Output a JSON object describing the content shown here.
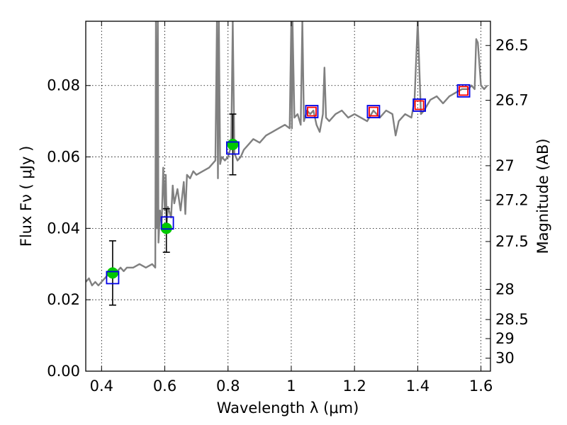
{
  "chart_data": {
    "type": "line",
    "title": "",
    "xlabel": "Wavelength  λ (μm)",
    "ylabel": "Flux  Fν  ( μJy )",
    "y2label": "Magnitude (AB)",
    "xlim": [
      0.35,
      1.63
    ],
    "ylim": [
      0.0,
      0.098
    ],
    "grid": true,
    "x_ticks": [
      0.4,
      0.6,
      0.8,
      1.0,
      1.2,
      1.4,
      1.6
    ],
    "x_tick_labels": [
      "0.4",
      "0.6",
      "0.8",
      "1",
      "1.2",
      "1.4",
      "1.6"
    ],
    "y_ticks": [
      0.0,
      0.02,
      0.04,
      0.06,
      0.08
    ],
    "y_tick_labels": [
      "0.00",
      "0.02",
      "0.04",
      "0.06",
      "0.08"
    ],
    "y2_ticks": [
      26.5,
      26.7,
      27.0,
      27.2,
      27.5,
      28.0,
      28.5,
      29.0,
      30.0
    ],
    "y2_tick_labels": [
      "26.5",
      "26.7",
      "27",
      "27.2",
      "27.5",
      "28",
      "28.5",
      "29",
      "30"
    ],
    "series": [
      {
        "kind": "line",
        "color": "#808080",
        "x": [
          0.35,
          0.36,
          0.37,
          0.38,
          0.39,
          0.4,
          0.41,
          0.42,
          0.43,
          0.44,
          0.45,
          0.46,
          0.47,
          0.48,
          0.5,
          0.52,
          0.54,
          0.56,
          0.57,
          0.572,
          0.575,
          0.578,
          0.58,
          0.585,
          0.59,
          0.595,
          0.6,
          0.603,
          0.606,
          0.61,
          0.62,
          0.625,
          0.63,
          0.64,
          0.65,
          0.66,
          0.665,
          0.67,
          0.68,
          0.69,
          0.7,
          0.72,
          0.74,
          0.76,
          0.765,
          0.768,
          0.771,
          0.775,
          0.78,
          0.79,
          0.8,
          0.81,
          0.815,
          0.82,
          0.83,
          0.84,
          0.85,
          0.86,
          0.88,
          0.9,
          0.92,
          0.94,
          0.96,
          0.98,
          0.995,
          1.0,
          1.002,
          1.004,
          1.01,
          1.02,
          1.03,
          1.035,
          1.04,
          1.05,
          1.06,
          1.07,
          1.08,
          1.09,
          1.1,
          1.105,
          1.11,
          1.12,
          1.14,
          1.16,
          1.18,
          1.2,
          1.22,
          1.24,
          1.26,
          1.28,
          1.3,
          1.32,
          1.33,
          1.34,
          1.36,
          1.38,
          1.39,
          1.4,
          1.41,
          1.42,
          1.44,
          1.46,
          1.48,
          1.5,
          1.52,
          1.54,
          1.56,
          1.57,
          1.58,
          1.585,
          1.59,
          1.6,
          1.61,
          1.62
        ],
        "y": [
          0.025,
          0.026,
          0.024,
          0.025,
          0.024,
          0.025,
          0.026,
          0.027,
          0.028,
          0.027,
          0.028,
          0.029,
          0.028,
          0.029,
          0.029,
          0.03,
          0.029,
          0.03,
          0.029,
          0.098,
          0.04,
          0.098,
          0.036,
          0.045,
          0.041,
          0.057,
          0.045,
          0.055,
          0.041,
          0.046,
          0.043,
          0.052,
          0.047,
          0.051,
          0.045,
          0.053,
          0.044,
          0.055,
          0.054,
          0.056,
          0.055,
          0.056,
          0.057,
          0.059,
          0.098,
          0.054,
          0.098,
          0.058,
          0.06,
          0.059,
          0.06,
          0.063,
          0.098,
          0.061,
          0.059,
          0.06,
          0.062,
          0.063,
          0.065,
          0.064,
          0.066,
          0.067,
          0.068,
          0.069,
          0.068,
          0.098,
          0.068,
          0.098,
          0.071,
          0.072,
          0.069,
          0.098,
          0.07,
          0.073,
          0.072,
          0.073,
          0.069,
          0.067,
          0.072,
          0.085,
          0.071,
          0.07,
          0.072,
          0.073,
          0.071,
          0.072,
          0.071,
          0.07,
          0.073,
          0.071,
          0.073,
          0.072,
          0.066,
          0.07,
          0.072,
          0.071,
          0.076,
          0.098,
          0.072,
          0.073,
          0.076,
          0.077,
          0.075,
          0.077,
          0.078,
          0.079,
          0.079,
          0.08,
          0.079,
          0.093,
          0.092,
          0.08,
          0.079,
          0.08
        ]
      },
      {
        "kind": "scatter",
        "marker": "circle",
        "color": "#00c800",
        "x": [
          0.435,
          0.605,
          0.815
        ],
        "y": [
          0.0275,
          0.04,
          0.0635
        ],
        "yerr_low": [
          0.0185,
          0.0333,
          0.055
        ],
        "yerr_high": [
          0.0365,
          0.0455,
          0.072
        ]
      },
      {
        "kind": "scatter",
        "marker": "open-square",
        "color": "#0000e6",
        "x": [
          0.435,
          0.608,
          0.815,
          1.065,
          1.26,
          1.405,
          1.545
        ],
        "y": [
          0.0262,
          0.0415,
          0.0625,
          0.0727,
          0.0727,
          0.0745,
          0.0785
        ]
      },
      {
        "kind": "scatter",
        "marker": "open-square",
        "color": "#ff0000",
        "x": [
          1.065,
          1.26,
          1.405,
          1.545
        ],
        "y": [
          0.0727,
          0.0727,
          0.0745,
          0.0785
        ]
      }
    ]
  }
}
